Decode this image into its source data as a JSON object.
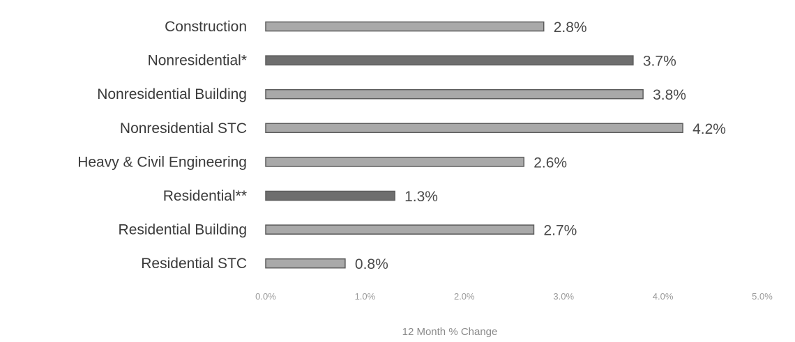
{
  "chart_data": {
    "type": "bar",
    "orientation": "horizontal",
    "categories": [
      "Construction",
      "Nonresidential*",
      "Nonresidential Building",
      "Nonresidential STC",
      "Heavy & Civil Engineering",
      "Residential**",
      "Residential Building",
      "Residential STC"
    ],
    "values": [
      2.8,
      3.7,
      3.8,
      4.2,
      2.6,
      1.3,
      2.7,
      0.8
    ],
    "value_labels": [
      "2.8%",
      "3.7%",
      "3.8%",
      "4.2%",
      "2.6%",
      "1.3%",
      "2.7%",
      "0.8%"
    ],
    "highlighted": [
      false,
      true,
      false,
      false,
      false,
      true,
      false,
      false
    ],
    "xlim": [
      0,
      5
    ],
    "xticks": [
      0,
      1,
      2,
      3,
      4,
      5
    ],
    "xtick_labels": [
      "0.0%",
      "1.0%",
      "2.0%",
      "3.0%",
      "4.0%",
      "5.0%"
    ],
    "xlabel": "12 Month % Change",
    "ylabel": "",
    "title": "",
    "grid": false,
    "colors": {
      "bar": "#a9a9a9",
      "bar_highlight": "#6e6e6e",
      "bar_edge": "#5c5c5c"
    }
  }
}
